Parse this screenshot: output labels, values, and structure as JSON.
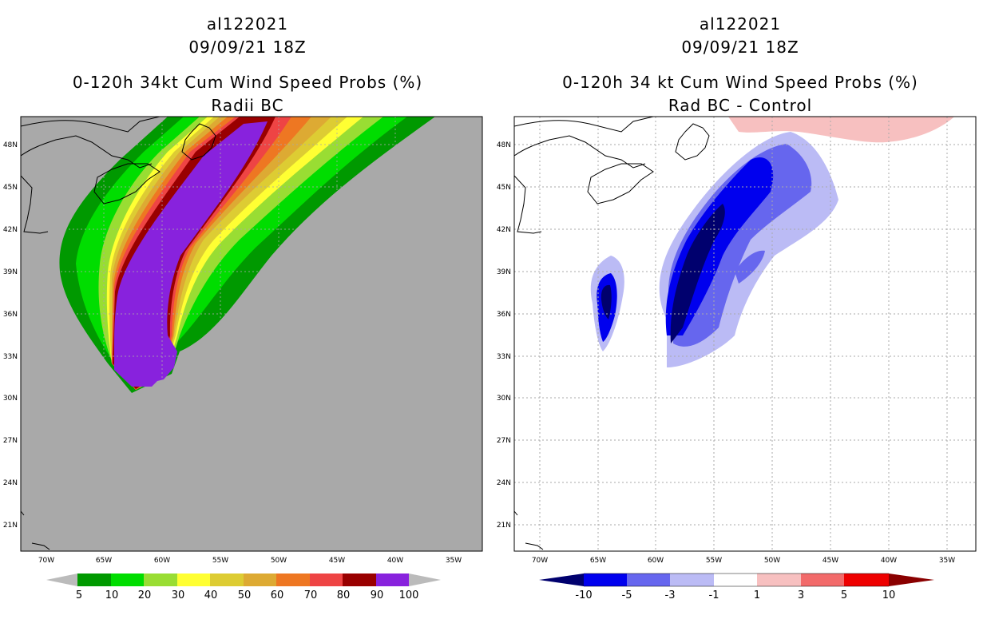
{
  "panels": [
    {
      "storm_id": "al122021",
      "datetime": "09/09/21 18Z",
      "title": "0-120h 34kt Cum Wind Speed Probs (%)",
      "subtitle": "Radii BC",
      "lat_labels": [
        "48N",
        "45N",
        "42N",
        "39N",
        "36N",
        "33N",
        "30N",
        "27N",
        "24N",
        "21N"
      ],
      "lon_labels": [
        "70W",
        "65W",
        "60W",
        "55W",
        "50W",
        "45W",
        "40W",
        "35W"
      ],
      "colorbar": {
        "labels": [
          "5",
          "10",
          "20",
          "30",
          "40",
          "50",
          "60",
          "70",
          "80",
          "90",
          "100"
        ],
        "colors": [
          "#009900",
          "#00dd00",
          "#99dd33",
          "#ffff33",
          "#ddcc33",
          "#ddaa33",
          "#ee7722",
          "#ee4444",
          "#990000",
          "#8822dd"
        ],
        "end_color": "#bbbbbb"
      }
    },
    {
      "storm_id": "al122021",
      "datetime": "09/09/21 18Z",
      "title": "0-120h 34 kt Cum Wind Speed Probs (%)",
      "subtitle": "Rad BC - Control",
      "lat_labels": [
        "48N",
        "45N",
        "42N",
        "39N",
        "36N",
        "33N",
        "30N",
        "27N",
        "24N",
        "21N"
      ],
      "lon_labels": [
        "70W",
        "65W",
        "60W",
        "55W",
        "50W",
        "45W",
        "40W",
        "35W"
      ],
      "colorbar": {
        "labels": [
          "-10",
          "-5",
          "-3",
          "-1",
          "1",
          "3",
          "5",
          "10"
        ],
        "colors": [
          "#00006e",
          "#0000ee",
          "#6666ee",
          "#bbbbf5",
          "#ffffff",
          "#f7c0c0",
          "#f26a6a",
          "#ee0000",
          "#8a0000"
        ]
      }
    }
  ],
  "colors": {
    "land_background": "#a9a9a9",
    "grid": "#aaaaaa"
  }
}
